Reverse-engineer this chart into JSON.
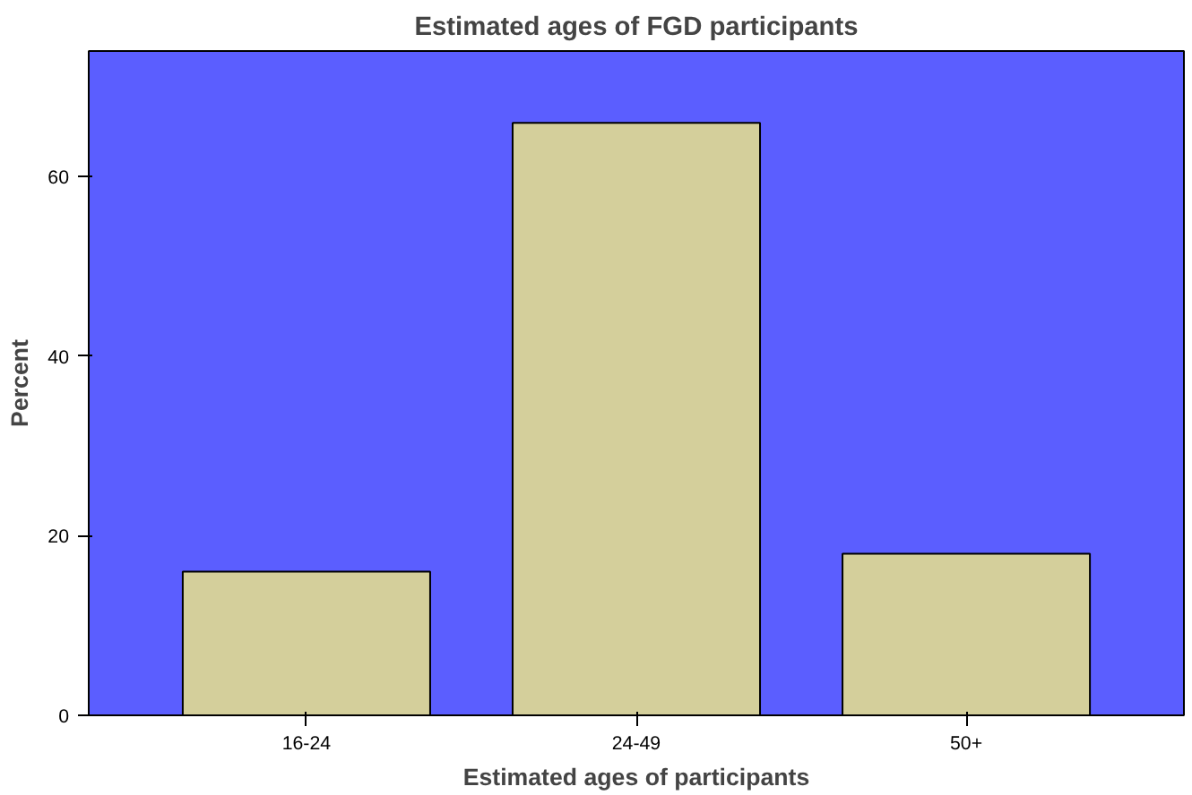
{
  "chart_data": {
    "type": "bar",
    "title": "Estimated ages of FGD participants",
    "xlabel": "Estimated ages of participants",
    "ylabel": "Percent",
    "categories": [
      "16-24",
      "24-49",
      "50+"
    ],
    "values": [
      16,
      66,
      18
    ],
    "color": "#d4cf9b",
    "ylim": [
      0,
      74
    ],
    "yticks": [
      0,
      20,
      40,
      60
    ],
    "grid": false
  }
}
